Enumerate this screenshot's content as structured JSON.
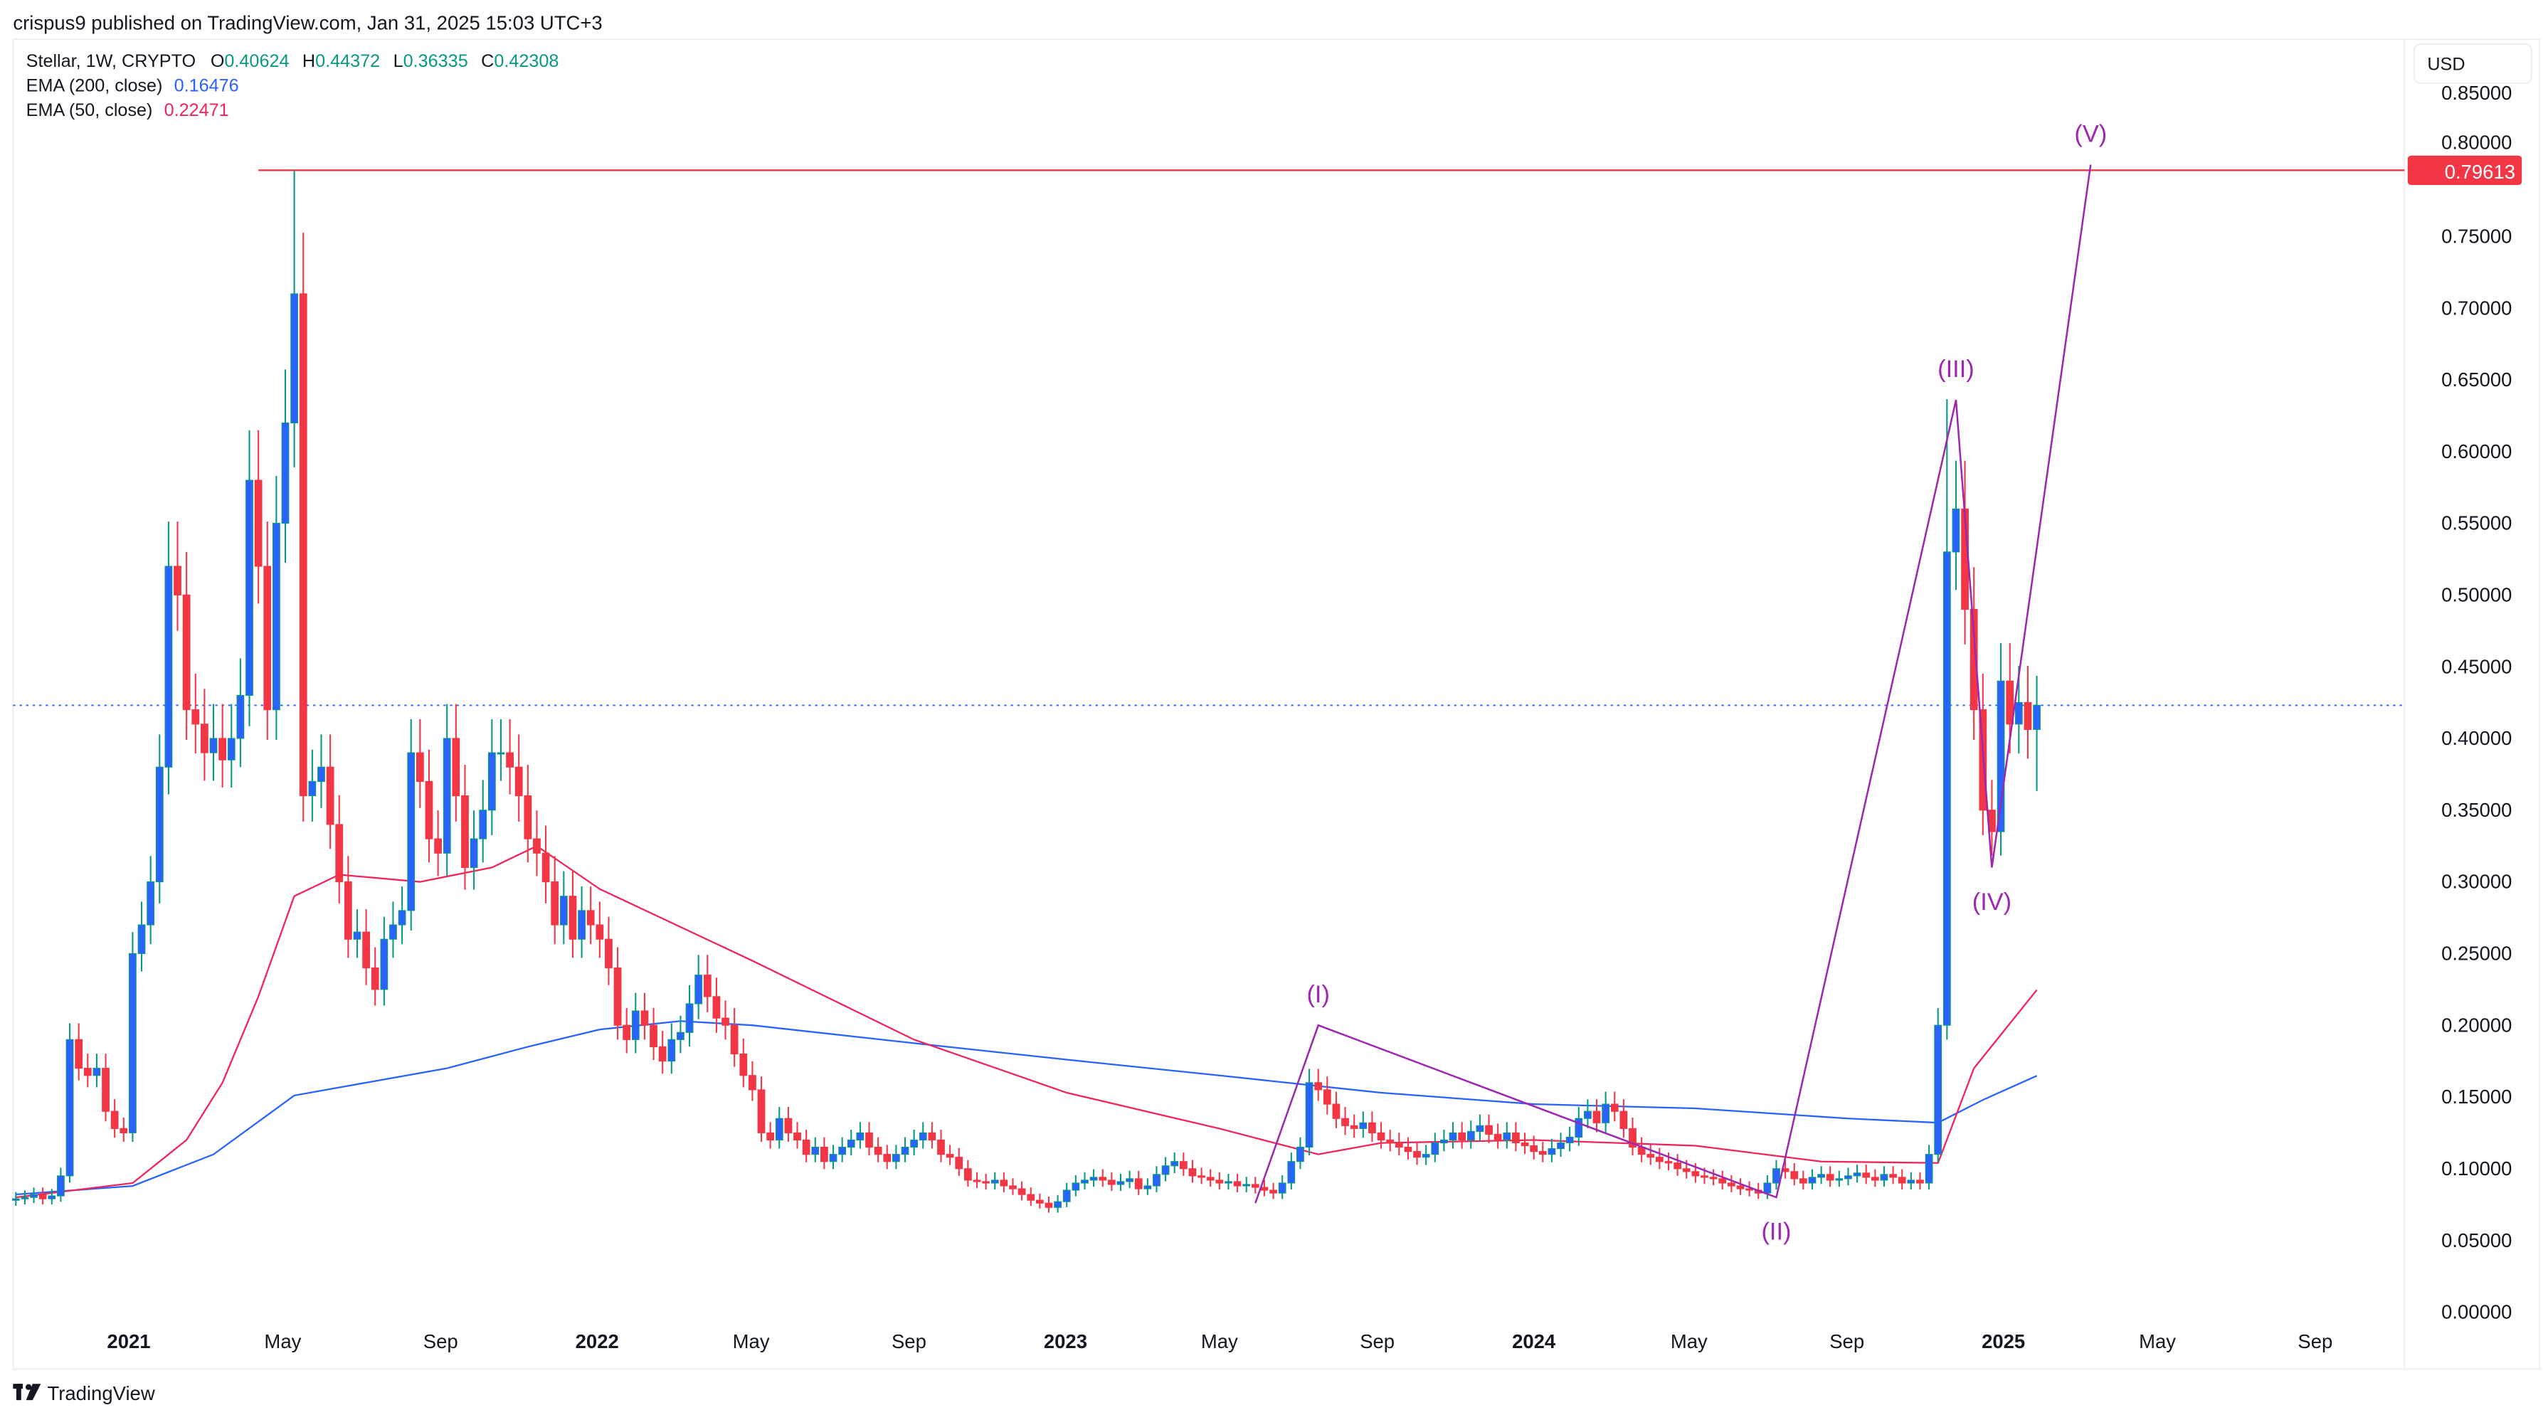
{
  "header": {
    "published": "crispus9 published on TradingView.com, Jan 31, 2025 15:03 UTC+3"
  },
  "legend": {
    "symbol": "Stellar, 1W, CRYPTO",
    "o_label": "O",
    "o_value": "0.40624",
    "h_label": "H",
    "h_value": "0.44372",
    "l_label": "L",
    "l_value": "0.36335",
    "c_label": "C",
    "c_value": "0.42308",
    "ema200_label": "EMA (200, close)",
    "ema200_value": "0.16476",
    "ema50_label": "EMA (50, close)",
    "ema50_value": "0.22471"
  },
  "currency_button": "USD",
  "footer": {
    "brand": "TradingView"
  },
  "colors": {
    "up_body": "#2962ff",
    "up_wick": "#089981",
    "down": "#f23645",
    "ema200": "#2962ff",
    "ema50": "#f0245a",
    "wave": "#9c27b0",
    "resistance": "#f23645",
    "last_price_line": "#2962ff",
    "ohlc_values": "#089981"
  },
  "chart_data": {
    "type": "candlestick",
    "interval": "1W",
    "first_week": "2020-10-05",
    "ylim": [
      0,
      0.85
    ],
    "y_ticks": [
      "0.85000",
      "0.80000",
      "0.75000",
      "0.70000",
      "0.65000",
      "0.60000",
      "0.55000",
      "0.50000",
      "0.45000",
      "0.40000",
      "0.35000",
      "0.30000",
      "0.25000",
      "0.20000",
      "0.15000",
      "0.10000",
      "0.05000",
      "0.00000"
    ],
    "x_ticks": [
      {
        "label": "2021",
        "date": "2021-01-01",
        "bold": true
      },
      {
        "label": "May",
        "date": "2021-05-01"
      },
      {
        "label": "Sep",
        "date": "2021-09-01"
      },
      {
        "label": "2022",
        "date": "2022-01-01",
        "bold": true
      },
      {
        "label": "May",
        "date": "2022-05-01"
      },
      {
        "label": "Sep",
        "date": "2022-09-01"
      },
      {
        "label": "2023",
        "date": "2023-01-01",
        "bold": true
      },
      {
        "label": "May",
        "date": "2023-05-01"
      },
      {
        "label": "Sep",
        "date": "2023-09-01"
      },
      {
        "label": "2024",
        "date": "2024-01-01",
        "bold": true
      },
      {
        "label": "May",
        "date": "2024-05-01"
      },
      {
        "label": "Sep",
        "date": "2024-09-01"
      },
      {
        "label": "2025",
        "date": "2025-01-01",
        "bold": true
      },
      {
        "label": "May",
        "date": "2025-05-01"
      },
      {
        "label": "Sep",
        "date": "2025-09-01"
      }
    ],
    "first_open": 0.078,
    "closes": [
      0.079,
      0.08,
      0.082,
      0.079,
      0.081,
      0.095,
      0.19,
      0.17,
      0.165,
      0.17,
      0.14,
      0.128,
      0.125,
      0.25,
      0.27,
      0.3,
      0.38,
      0.52,
      0.5,
      0.42,
      0.41,
      0.39,
      0.4,
      0.385,
      0.4,
      0.43,
      0.58,
      0.52,
      0.42,
      0.55,
      0.62,
      0.71,
      0.36,
      0.37,
      0.38,
      0.34,
      0.3,
      0.26,
      0.265,
      0.24,
      0.225,
      0.26,
      0.27,
      0.28,
      0.39,
      0.37,
      0.33,
      0.32,
      0.4,
      0.36,
      0.31,
      0.33,
      0.35,
      0.39,
      0.39,
      0.38,
      0.36,
      0.33,
      0.32,
      0.3,
      0.27,
      0.29,
      0.26,
      0.28,
      0.27,
      0.26,
      0.24,
      0.2,
      0.19,
      0.21,
      0.2,
      0.185,
      0.175,
      0.19,
      0.195,
      0.215,
      0.235,
      0.22,
      0.205,
      0.2,
      0.18,
      0.165,
      0.155,
      0.125,
      0.12,
      0.135,
      0.125,
      0.12,
      0.11,
      0.115,
      0.105,
      0.11,
      0.115,
      0.12,
      0.125,
      0.115,
      0.11,
      0.105,
      0.11,
      0.115,
      0.12,
      0.125,
      0.12,
      0.11,
      0.108,
      0.1,
      0.092,
      0.091,
      0.09,
      0.092,
      0.088,
      0.086,
      0.082,
      0.078,
      0.076,
      0.073,
      0.077,
      0.085,
      0.09,
      0.092,
      0.094,
      0.092,
      0.089,
      0.091,
      0.093,
      0.086,
      0.088,
      0.096,
      0.102,
      0.105,
      0.1,
      0.095,
      0.094,
      0.092,
      0.09,
      0.091,
      0.088,
      0.089,
      0.087,
      0.085,
      0.083,
      0.09,
      0.105,
      0.115,
      0.16,
      0.155,
      0.145,
      0.135,
      0.13,
      0.128,
      0.132,
      0.125,
      0.12,
      0.118,
      0.115,
      0.112,
      0.108,
      0.11,
      0.118,
      0.12,
      0.125,
      0.12,
      0.126,
      0.13,
      0.124,
      0.12,
      0.125,
      0.118,
      0.116,
      0.112,
      0.11,
      0.114,
      0.118,
      0.122,
      0.135,
      0.14,
      0.132,
      0.145,
      0.14,
      0.128,
      0.115,
      0.11,
      0.108,
      0.105,
      0.104,
      0.1,
      0.098,
      0.095,
      0.094,
      0.093,
      0.09,
      0.088,
      0.086,
      0.085,
      0.083,
      0.09,
      0.1,
      0.098,
      0.093,
      0.09,
      0.094,
      0.096,
      0.092,
      0.093,
      0.095,
      0.097,
      0.094,
      0.092,
      0.096,
      0.094,
      0.09,
      0.092,
      0.09,
      0.11,
      0.2,
      0.53,
      0.56,
      0.49,
      0.42,
      0.35,
      0.335,
      0.44,
      0.41,
      0.425,
      0.40624,
      0.42308
    ],
    "notable_highs": {
      "31": 0.79613,
      "215": 0.6365
    },
    "last_candle": {
      "open": 0.40624,
      "high": 0.44372,
      "low": 0.36335,
      "close": 0.42308
    },
    "ema50": [
      [
        "2020-10-05",
        0.08
      ],
      [
        "2021-01-04",
        0.09
      ],
      [
        "2021-02-15",
        0.12
      ],
      [
        "2021-03-15",
        0.16
      ],
      [
        "2021-04-12",
        0.22
      ],
      [
        "2021-05-10",
        0.29
      ],
      [
        "2021-06-14",
        0.305
      ],
      [
        "2021-08-16",
        0.3
      ],
      [
        "2021-10-11",
        0.31
      ],
      [
        "2021-11-15",
        0.325
      ],
      [
        "2022-01-03",
        0.295
      ],
      [
        "2022-05-02",
        0.245
      ],
      [
        "2022-09-05",
        0.19
      ],
      [
        "2023-01-02",
        0.153
      ],
      [
        "2023-05-01",
        0.128
      ],
      [
        "2023-07-17",
        0.11
      ],
      [
        "2023-09-04",
        0.118
      ],
      [
        "2024-01-01",
        0.12
      ],
      [
        "2024-05-06",
        0.116
      ],
      [
        "2024-08-12",
        0.105
      ],
      [
        "2024-11-11",
        0.104
      ],
      [
        "2024-12-09",
        0.17
      ],
      [
        "2025-01-27",
        0.22471
      ]
    ],
    "ema200": [
      [
        "2020-10-05",
        0.082
      ],
      [
        "2021-01-04",
        0.088
      ],
      [
        "2021-03-08",
        0.11
      ],
      [
        "2021-05-10",
        0.151
      ],
      [
        "2021-07-05",
        0.16
      ],
      [
        "2021-09-06",
        0.17
      ],
      [
        "2021-11-08",
        0.185
      ],
      [
        "2022-01-03",
        0.197
      ],
      [
        "2022-03-07",
        0.203
      ],
      [
        "2022-05-02",
        0.2
      ],
      [
        "2022-09-05",
        0.1875
      ],
      [
        "2023-01-02",
        0.176
      ],
      [
        "2023-05-01",
        0.165
      ],
      [
        "2023-09-04",
        0.153
      ],
      [
        "2024-01-01",
        0.145
      ],
      [
        "2024-05-06",
        0.142
      ],
      [
        "2024-09-02",
        0.135
      ],
      [
        "2024-11-11",
        0.132
      ],
      [
        "2024-12-16",
        0.148
      ],
      [
        "2025-01-27",
        0.16476
      ]
    ],
    "horizontal_line": {
      "price": 0.79613,
      "label": "0.79613",
      "from": "2021-04-12"
    },
    "last_price": 0.42308,
    "elliott_wave": [
      {
        "label": "",
        "date": "2023-05-29",
        "price": 0.076
      },
      {
        "label": "(I)",
        "date": "2023-07-17",
        "price": 0.2,
        "pos": "above"
      },
      {
        "label": "(II)",
        "date": "2024-07-08",
        "price": 0.08,
        "pos": "below"
      },
      {
        "label": "(III)",
        "date": "2024-11-25",
        "price": 0.636,
        "pos": "above"
      },
      {
        "label": "(IV)",
        "date": "2024-12-23",
        "price": 0.31,
        "pos": "below"
      },
      {
        "label": "(V)",
        "date": "2025-03-10",
        "price": 0.8,
        "pos": "above"
      }
    ]
  }
}
